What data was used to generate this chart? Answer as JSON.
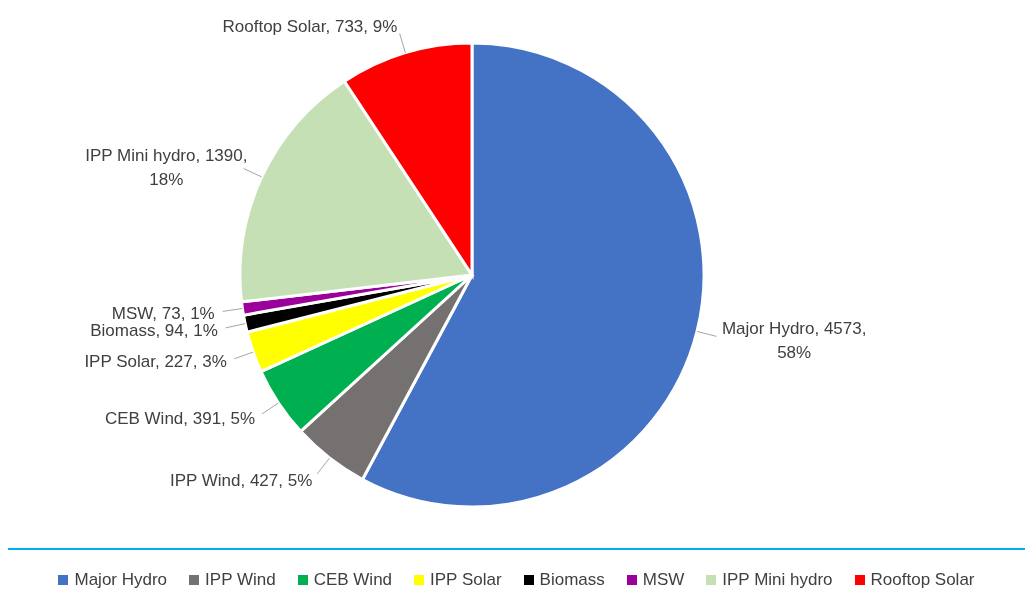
{
  "chart_data": {
    "type": "pie",
    "categories": [
      "Major Hydro",
      "IPP Wind",
      "CEB Wind",
      "IPP Solar",
      "Biomass",
      "MSW",
      "IPP Mini hydro",
      "Rooftop Solar"
    ],
    "values": [
      4573,
      427,
      391,
      227,
      94,
      73,
      1390,
      733
    ],
    "colors": [
      "#4472c4",
      "#767171",
      "#00b050",
      "#ffff00",
      "#000000",
      "#9b009b",
      "#c5e0b4",
      "#ff0000"
    ],
    "value_labels": [
      "Major Hydro, 4573, 58%",
      "IPP Wind, 427, 5%",
      "CEB Wind, 391, 5%",
      "IPP Solar, 227, 3%",
      "Biomass, 94, 1%",
      "MSW, 73, 1%",
      "IPP Mini hydro, 1390, 18%",
      "Rooftop Solar, 733, 9%"
    ],
    "legend": "bottom"
  }
}
